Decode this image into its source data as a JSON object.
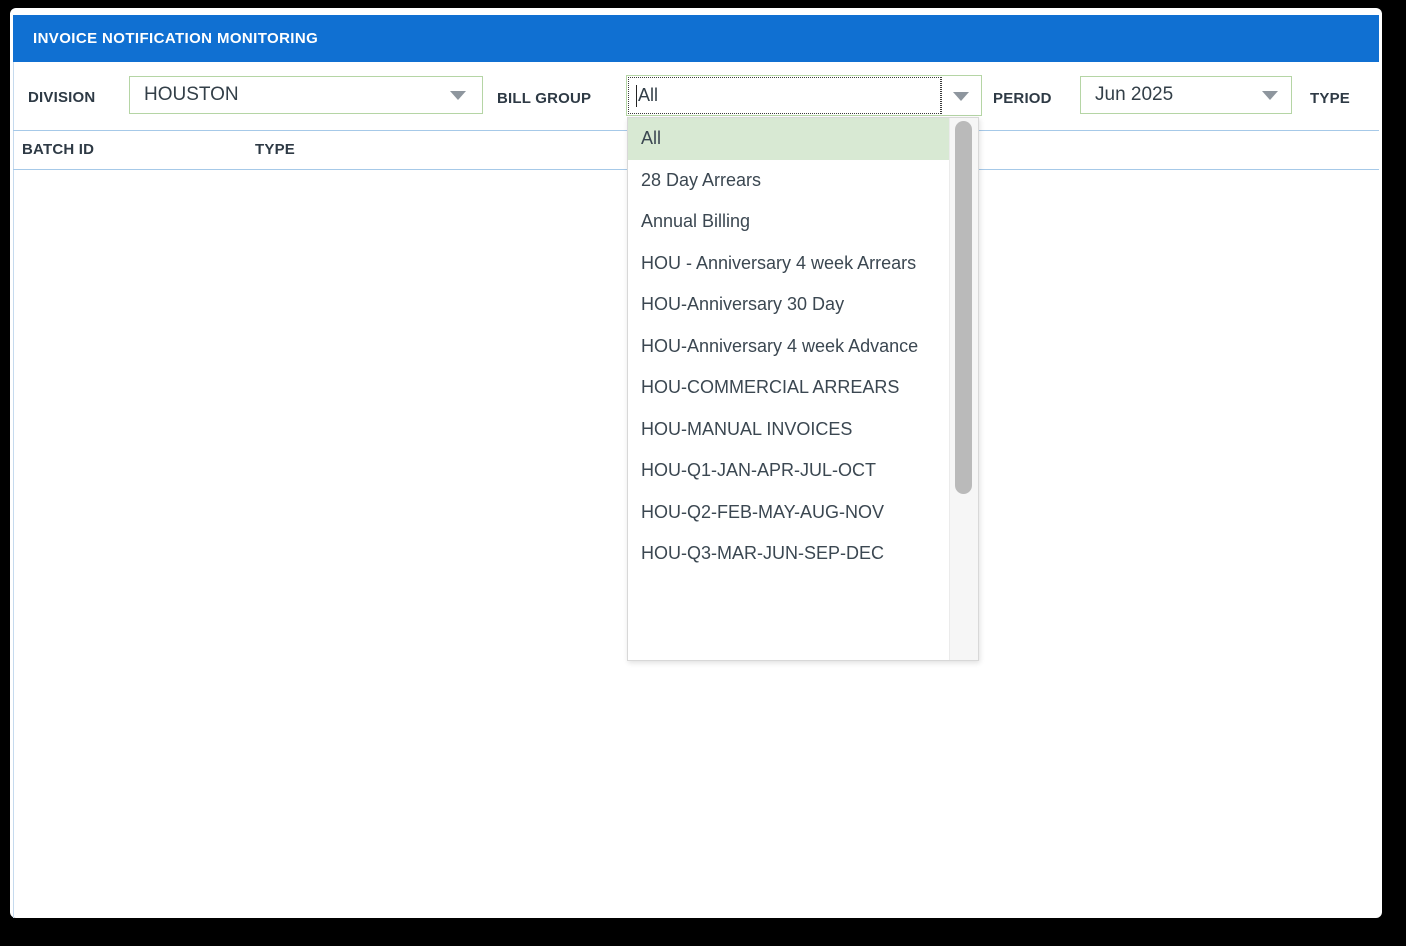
{
  "title_bar": {
    "title": "INVOICE NOTIFICATION MONITORING"
  },
  "filters": {
    "division": {
      "label": "DIVISION",
      "value": "HOUSTON"
    },
    "bill_group": {
      "label": "BILL GROUP",
      "value": "All"
    },
    "period": {
      "label": "PERIOD",
      "value": "Jun 2025"
    },
    "type": {
      "label": "TYPE"
    }
  },
  "table": {
    "columns": [
      "BATCH ID",
      "TYPE"
    ]
  },
  "bill_group_dropdown": {
    "selected": "All",
    "options": [
      "All",
      "28 Day Arrears",
      "Annual Billing",
      "HOU - Anniversary 4 week Arrears",
      "HOU-Anniversary 30 Day",
      "HOU-Anniversary 4 week Advance",
      "HOU-COMMERCIAL ARREARS",
      "HOU-MANUAL INVOICES",
      "HOU-Q1-JAN-APR-JUL-OCT",
      "HOU-Q2-FEB-MAY-AUG-NOV",
      "HOU-Q3-MAR-JUN-SEP-DEC"
    ]
  },
  "icons": {
    "dropdown_arrow": "triangle-down",
    "text_cursor": "caret"
  },
  "colors": {
    "title_bar_bg": "#1070d2",
    "combo_border_green": "#b5d5a5",
    "selected_option_bg": "#d8e9d3",
    "table_line_blue": "#a6c9e8",
    "label_text": "#2e3a45",
    "frame_bg": "#000000"
  }
}
